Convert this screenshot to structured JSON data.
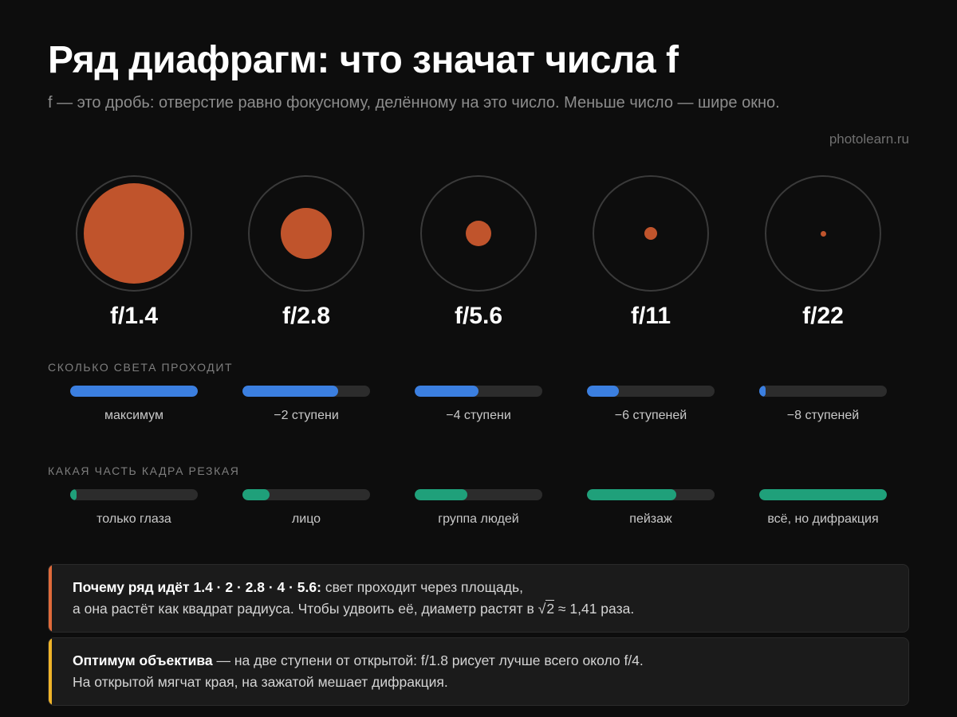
{
  "header": {
    "title": "Ряд диафрагм: что значат числа f",
    "subtitle": "f — это дробь: отверстие равно фокусному, делённому на это число. Меньше число — шире окно.",
    "source": "photolearn.ru"
  },
  "colors": {
    "aperture_hole": "#c0542c",
    "light_bar": "#3b7fe0",
    "sharpness_bar": "#1fa07a",
    "note_accent_1": "#e06a3a",
    "note_accent_2": "#f0b429"
  },
  "apertures": [
    {
      "label": "f/1.4",
      "opening_fraction": 0.86,
      "light_level": 1.0,
      "light_caption": "максимум",
      "sharp_level": 0.05,
      "sharp_caption": "только глаза"
    },
    {
      "label": "f/2.8",
      "opening_fraction": 0.44,
      "light_level": 0.75,
      "light_caption": "−2 ступени",
      "sharp_level": 0.21,
      "sharp_caption": "лицо"
    },
    {
      "label": "f/5.6",
      "opening_fraction": 0.22,
      "light_level": 0.5,
      "light_caption": "−4 ступени",
      "sharp_level": 0.41,
      "sharp_caption": "группа людей"
    },
    {
      "label": "f/11",
      "opening_fraction": 0.11,
      "light_level": 0.25,
      "light_caption": "−6 ступеней",
      "sharp_level": 0.7,
      "sharp_caption": "пейзаж"
    },
    {
      "label": "f/22",
      "opening_fraction": 0.05,
      "light_level": 0.05,
      "light_caption": "−8 ступеней",
      "sharp_level": 1.0,
      "sharp_caption": "всё, но дифракция"
    }
  ],
  "sections": {
    "light": "СКОЛЬКО СВЕТА ПРОХОДИТ",
    "sharpness": "КАКАЯ ЧАСТЬ КАДРА РЕЗКАЯ"
  },
  "notes": [
    {
      "bold": "Почему ряд идёт 1.4 · 2 · 2.8 · 4 · 5.6:",
      "line1_rest": " свет проходит через площадь,",
      "line2_before": "а она растёт как квадрат радиуса. Чтобы удвоить её, диаметр растят в ",
      "radical": "2",
      "line2_after": " ≈ 1,41 раза."
    },
    {
      "bold": "Оптимум объектива",
      "line1_rest": " — на две ступени от открытой: f/1.8 рисует лучше всего около f/4.",
      "line2": "На открытой мягчат края, на зажатой мешает дифракция."
    }
  ]
}
